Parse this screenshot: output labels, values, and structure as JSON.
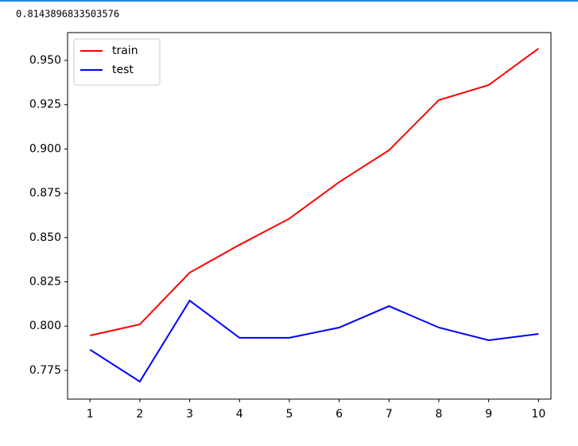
{
  "output_text": "0.8143896833503576",
  "chart_data": {
    "type": "line",
    "x": [
      1,
      2,
      3,
      4,
      5,
      6,
      7,
      8,
      9,
      10
    ],
    "series": [
      {
        "name": "train",
        "color": "#ff0000",
        "values": [
          0.7947,
          0.801,
          0.8302,
          0.8459,
          0.8607,
          0.8813,
          0.8993,
          0.9276,
          0.9361,
          0.9567
        ]
      },
      {
        "name": "test",
        "color": "#0000ff",
        "values": [
          0.7867,
          0.7687,
          0.8144,
          0.7934,
          0.7934,
          0.7992,
          0.8113,
          0.7992,
          0.792,
          0.7956
        ]
      }
    ],
    "xlim": [
      0.55,
      10.25
    ],
    "ylim": [
      0.7588,
      0.9657
    ],
    "xticks": [
      1,
      2,
      3,
      4,
      5,
      6,
      7,
      8,
      9,
      10
    ],
    "yticks": [
      0.775,
      {
        "value": 0.8,
        "label": "0.800"
      },
      0.825,
      {
        "value": 0.85,
        "label": "0.850"
      },
      0.875,
      {
        "value": 0.9,
        "label": "0.900"
      },
      0.925,
      {
        "value": 0.95,
        "label": "0.950"
      }
    ],
    "legend": "upper left",
    "grid": false
  }
}
